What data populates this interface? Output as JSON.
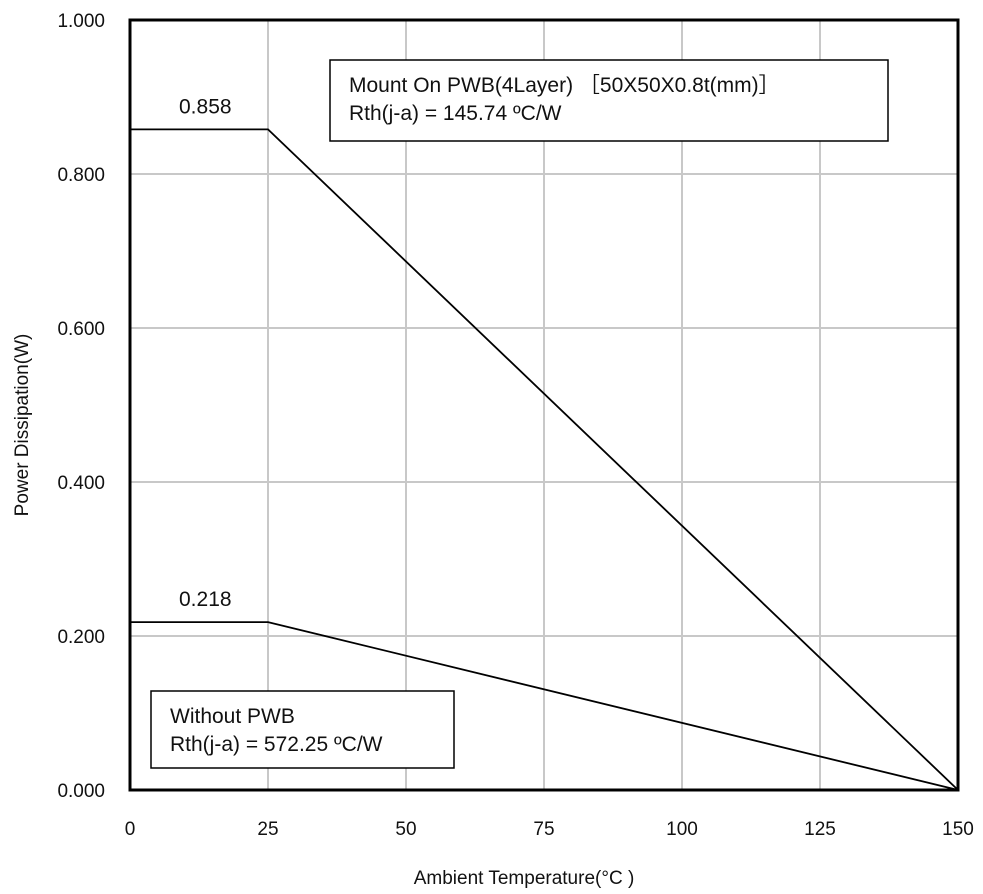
{
  "chart_data": {
    "type": "line",
    "xlabel": "Ambient Temperature(°C )",
    "ylabel": "Power Dissipation(W)",
    "xlim": [
      0,
      150
    ],
    "ylim": [
      0,
      1.0
    ],
    "x_ticks": [
      "0",
      "25",
      "50",
      "75",
      "100",
      "125",
      "150"
    ],
    "y_ticks": [
      "0.000",
      "0.200",
      "0.400",
      "0.600",
      "0.800",
      "1.000"
    ],
    "grid": true,
    "series": [
      {
        "name": "Mount On PWB(4Layer) ［50X50X0.8t(mm)］",
        "points": [
          [
            0,
            0.858
          ],
          [
            25,
            0.858
          ],
          [
            150,
            0
          ]
        ],
        "value_label": "0.858",
        "annotation": [
          "Mount On PWB(4Layer) ［50X50X0.8t(mm)］",
          "Rth(j-a) = 145.74 ºC/W"
        ]
      },
      {
        "name": "Without PWB",
        "points": [
          [
            0,
            0.218
          ],
          [
            25,
            0.218
          ],
          [
            150,
            0
          ]
        ],
        "value_label": "0.218",
        "annotation": [
          "Without PWB",
          "Rth(j-a) = 572.25 ºC/W"
        ]
      }
    ]
  }
}
